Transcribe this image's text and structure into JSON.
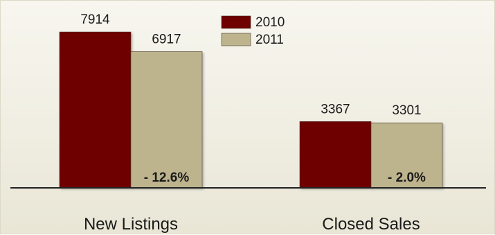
{
  "chart_data": {
    "type": "bar",
    "categories": [
      "New Listings",
      "Closed Sales"
    ],
    "series": [
      {
        "name": "2010",
        "values": [
          7914,
          3367
        ],
        "color": "#6e0000"
      },
      {
        "name": "2011",
        "values": [
          6917,
          3301
        ],
        "color": "#bdb48e"
      }
    ],
    "value_labels": [
      [
        "7914",
        "3367"
      ],
      [
        "6917",
        "3301"
      ]
    ],
    "change_labels": [
      "- 12.6%",
      "- 2.0%"
    ],
    "ylim": [
      0,
      9500
    ],
    "grid": false,
    "legend_position": "top-center",
    "title": "",
    "xlabel": "",
    "ylabel": ""
  }
}
